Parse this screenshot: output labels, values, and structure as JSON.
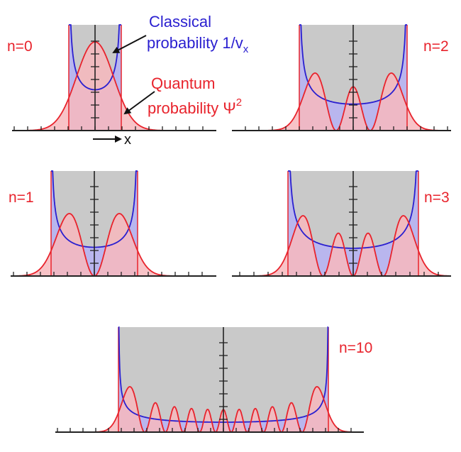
{
  "colors": {
    "classical": "#2a1fd0",
    "quantum": "#e8232c",
    "quantum_fill": "#f7b9bd",
    "allowed_region": "#c9c9c9",
    "overlap_fill": "#b9b6ee",
    "axis": "#222222"
  },
  "annotations": {
    "classical_line1": "Classical",
    "classical_line2": "probability 1/v",
    "classical_sub": "x",
    "quantum_line1": "Quantum",
    "quantum_line2": "probability Ψ",
    "quantum_sup": "2",
    "x_axis_label": "x"
  },
  "panels": [
    {
      "n": 0,
      "label": "n=0"
    },
    {
      "n": 2,
      "label": "n=2"
    },
    {
      "n": 1,
      "label": "n=1"
    },
    {
      "n": 3,
      "label": "n=3"
    },
    {
      "n": 10,
      "label": "n=10"
    }
  ]
}
